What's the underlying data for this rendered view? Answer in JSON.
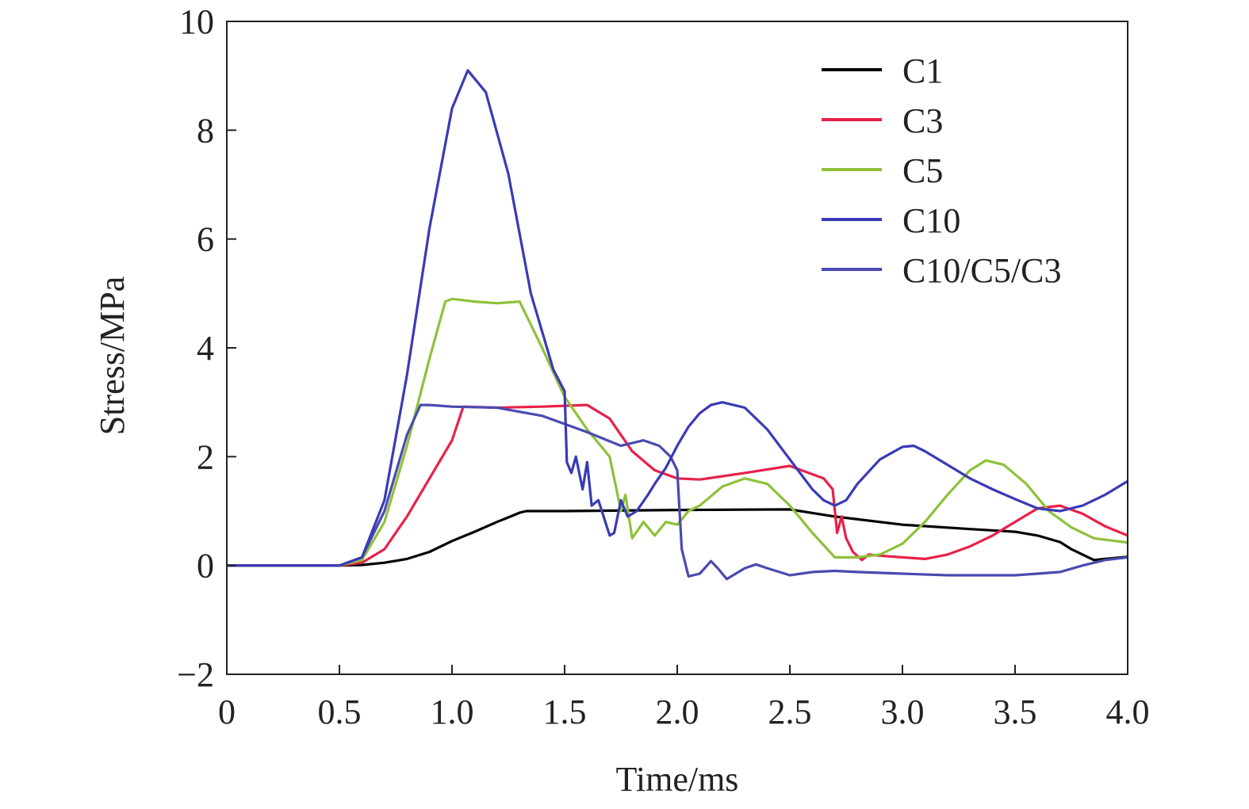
{
  "chart_data": {
    "type": "line",
    "title": "",
    "xlabel": "Time/ms",
    "ylabel": "Stress/MPa",
    "xlim": [
      0,
      4.0
    ],
    "ylim": [
      -2,
      10
    ],
    "xticks": [
      0,
      0.5,
      1.0,
      1.5,
      2.0,
      2.5,
      3.0,
      3.5,
      4.0
    ],
    "xtick_labels": [
      "0",
      "0.5",
      "1.0",
      "1.5",
      "2.0",
      "2.5",
      "3.0",
      "3.5",
      "4.0"
    ],
    "yticks": [
      -2,
      0,
      2,
      4,
      6,
      8,
      10
    ],
    "ytick_labels": [
      "−2",
      "0",
      "2",
      "4",
      "6",
      "8",
      "10"
    ],
    "grid": false,
    "legend_position": "top-right",
    "series": [
      {
        "name": "C1",
        "color": "#000000",
        "x": [
          0,
          0.5,
          0.6,
          0.7,
          0.8,
          0.9,
          1.0,
          1.1,
          1.2,
          1.3,
          1.33,
          1.5,
          2.0,
          2.5,
          2.7,
          3.0,
          3.3,
          3.5,
          3.6,
          3.7,
          3.75,
          3.8,
          3.85,
          3.9,
          4.0
        ],
        "y": [
          0,
          0,
          0.01,
          0.05,
          0.12,
          0.25,
          0.45,
          0.62,
          0.8,
          0.97,
          1.0,
          1.0,
          1.02,
          1.03,
          0.9,
          0.75,
          0.67,
          0.62,
          0.55,
          0.43,
          0.3,
          0.2,
          0.1,
          0.12,
          0.16
        ]
      },
      {
        "name": "C3",
        "color": "#e8204a",
        "x": [
          0,
          0.5,
          0.6,
          0.7,
          0.8,
          0.9,
          1.0,
          1.05,
          1.2,
          1.4,
          1.6,
          1.7,
          1.8,
          1.9,
          2.0,
          2.1,
          2.3,
          2.5,
          2.65,
          2.69,
          2.71,
          2.73,
          2.75,
          2.78,
          2.82,
          2.85,
          2.9,
          3.0,
          3.1,
          3.2,
          3.3,
          3.4,
          3.5,
          3.6,
          3.7,
          3.8,
          3.9,
          4.0
        ],
        "y": [
          0,
          0,
          0.05,
          0.3,
          0.9,
          1.6,
          2.3,
          2.92,
          2.9,
          2.92,
          2.95,
          2.7,
          2.1,
          1.75,
          1.6,
          1.58,
          1.7,
          1.83,
          1.6,
          1.4,
          0.6,
          0.9,
          0.5,
          0.25,
          0.1,
          0.2,
          0.18,
          0.15,
          0.12,
          0.2,
          0.35,
          0.55,
          0.8,
          1.05,
          1.1,
          0.95,
          0.72,
          0.55
        ]
      },
      {
        "name": "C5",
        "color": "#8fc13a",
        "x": [
          0,
          0.5,
          0.6,
          0.7,
          0.8,
          0.9,
          0.97,
          1.0,
          1.1,
          1.2,
          1.3,
          1.4,
          1.5,
          1.6,
          1.7,
          1.72,
          1.75,
          1.77,
          1.8,
          1.85,
          1.9,
          1.95,
          2.0,
          2.05,
          2.1,
          2.2,
          2.3,
          2.4,
          2.5,
          2.6,
          2.7,
          2.8,
          2.9,
          3.0,
          3.1,
          3.2,
          3.3,
          3.37,
          3.45,
          3.55,
          3.65,
          3.75,
          3.85,
          4.0
        ],
        "y": [
          0,
          0,
          0.1,
          0.8,
          2.2,
          3.8,
          4.85,
          4.9,
          4.85,
          4.82,
          4.85,
          4.0,
          3.1,
          2.5,
          2.0,
          1.6,
          1.0,
          1.3,
          0.5,
          0.8,
          0.55,
          0.8,
          0.75,
          1.0,
          1.1,
          1.45,
          1.6,
          1.5,
          1.1,
          0.6,
          0.15,
          0.15,
          0.2,
          0.4,
          0.8,
          1.3,
          1.75,
          1.93,
          1.85,
          1.5,
          1.0,
          0.7,
          0.5,
          0.42
        ]
      },
      {
        "name": "C10",
        "color": "#3a3ab8",
        "x": [
          0,
          0.5,
          0.6,
          0.7,
          0.8,
          0.9,
          1.0,
          1.07,
          1.15,
          1.25,
          1.35,
          1.45,
          1.5,
          1.51,
          1.53,
          1.55,
          1.58,
          1.6,
          1.62,
          1.65,
          1.7,
          1.72,
          1.75,
          1.78,
          1.82,
          1.87,
          1.9,
          1.95,
          2.0,
          2.05,
          2.1,
          2.15,
          2.2,
          2.3,
          2.4,
          2.5,
          2.6,
          2.65,
          2.7,
          2.75,
          2.8,
          2.9,
          3.0,
          3.05,
          3.1,
          3.2,
          3.3,
          3.4,
          3.5,
          3.6,
          3.7,
          3.8,
          3.9,
          4.0
        ],
        "y": [
          0,
          0,
          0.15,
          1.2,
          3.5,
          6.2,
          8.4,
          9.1,
          8.7,
          7.2,
          5.0,
          3.6,
          3.2,
          1.9,
          1.7,
          2.0,
          1.4,
          1.9,
          1.1,
          1.2,
          0.55,
          0.6,
          1.2,
          0.9,
          1.0,
          1.3,
          1.5,
          1.8,
          2.2,
          2.55,
          2.8,
          2.95,
          3.0,
          2.9,
          2.5,
          1.95,
          1.4,
          1.2,
          1.1,
          1.2,
          1.5,
          1.95,
          2.18,
          2.2,
          2.1,
          1.85,
          1.6,
          1.4,
          1.22,
          1.05,
          1.0,
          1.1,
          1.3,
          1.55
        ]
      },
      {
        "name": "C10/C5/C3",
        "color": "#4a4ab0",
        "x": [
          0,
          0.5,
          0.6,
          0.7,
          0.8,
          0.86,
          0.9,
          1.0,
          1.2,
          1.4,
          1.6,
          1.75,
          1.85,
          1.92,
          1.97,
          2.0,
          2.02,
          2.05,
          2.1,
          2.15,
          2.18,
          2.22,
          2.3,
          2.35,
          2.4,
          2.5,
          2.6,
          2.7,
          2.8,
          3.0,
          3.2,
          3.5,
          3.6,
          3.7,
          3.8,
          3.9,
          4.0
        ],
        "y": [
          0,
          0,
          0.15,
          1.0,
          2.4,
          2.95,
          2.95,
          2.92,
          2.9,
          2.75,
          2.45,
          2.2,
          2.3,
          2.2,
          2.0,
          1.75,
          0.3,
          -0.2,
          -0.15,
          0.08,
          -0.05,
          -0.25,
          -0.05,
          0.02,
          -0.05,
          -0.18,
          -0.12,
          -0.1,
          -0.12,
          -0.15,
          -0.18,
          -0.18,
          -0.15,
          -0.12,
          0.0,
          0.1,
          0.15
        ]
      }
    ]
  }
}
